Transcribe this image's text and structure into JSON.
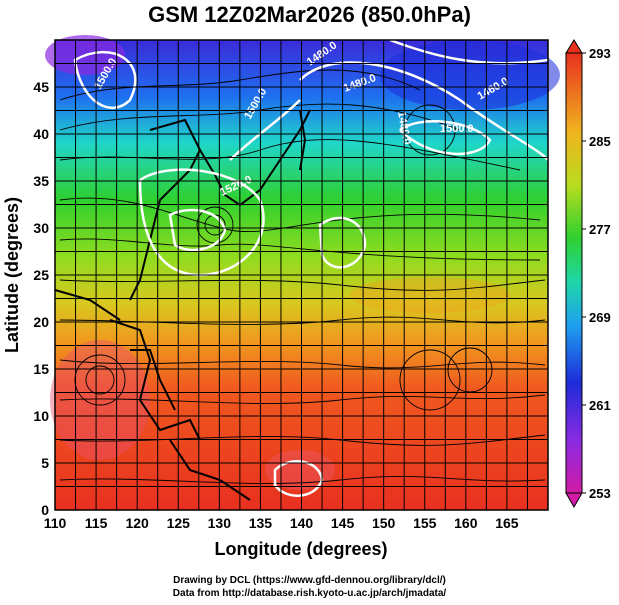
{
  "title": "GSM 12Z02Mar2026 (850.0hPa)",
  "x_axis": {
    "label": "Longitude (degrees)",
    "ticks": [
      "110",
      "115",
      "120",
      "125",
      "130",
      "135",
      "140",
      "145",
      "150",
      "155",
      "160",
      "165"
    ],
    "range": [
      110,
      170
    ]
  },
  "y_axis": {
    "label": "Latitude  (degrees)",
    "ticks": [
      "0",
      "5",
      "10",
      "15",
      "20",
      "25",
      "30",
      "35",
      "40",
      "45"
    ],
    "range": [
      0,
      50
    ]
  },
  "colorbar": {
    "ticks": [
      "253",
      "261",
      "269",
      "277",
      "285",
      "293"
    ],
    "range": [
      253,
      293
    ],
    "colors": [
      "#d21ba6",
      "#8a2be2",
      "#1d2bd8",
      "#1f6ff0",
      "#1fb3f0",
      "#1fd6a8",
      "#2fd02f",
      "#8fdc1f",
      "#d8d81f",
      "#f0b41f",
      "#f07a1f",
      "#ea3a22"
    ]
  },
  "contours": {
    "labels": [
      "1480.0",
      "1480.0",
      "1480.0",
      "1500.0",
      "1520.0",
      "1500.0",
      "1460.0",
      "1500.0"
    ],
    "color": "#ffffff"
  },
  "field_colors": {
    "land": "#000000",
    "streamline": "#000000",
    "grid": "#000000"
  },
  "credits": {
    "line1": "Drawing by DCL (https://www.gfd-dennou.org/library/dcl/)",
    "line2": "Data from http://database.rish.kyoto-u.ac.jp/arch/jmadata/"
  }
}
